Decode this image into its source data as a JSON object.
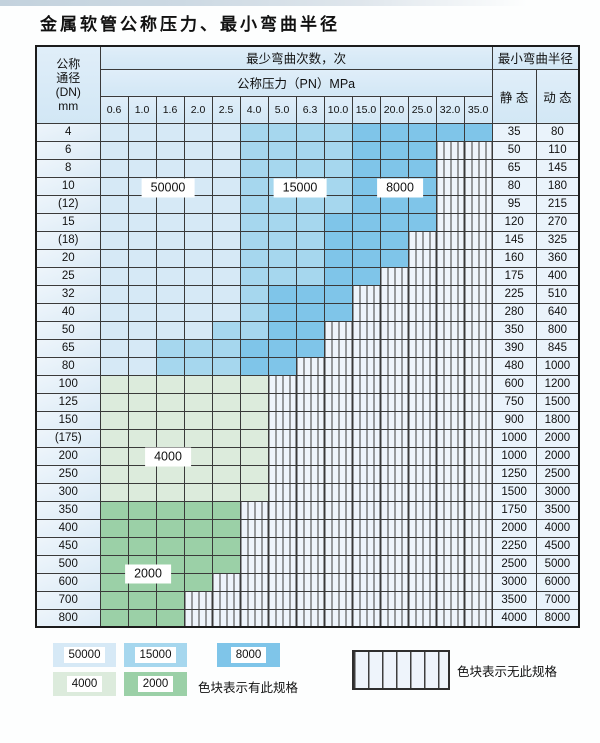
{
  "title": "金属软管公称压力、最小弯曲半径",
  "table": {
    "header": {
      "dn_label_lines": [
        "公称",
        "通径",
        "(DN)",
        "mm"
      ],
      "bend_cycles_label": "最少弯曲次数，次",
      "pressure_label": "公称压力（PN）MPa",
      "radius_label": "最小弯曲半径",
      "static_label": "静 态",
      "dynamic_label": "动 态",
      "pressures": [
        "0.6",
        "1.0",
        "1.6",
        "2.0",
        "2.5",
        "4.0",
        "5.0",
        "6.3",
        "10.0",
        "15.0",
        "20.0",
        "25.0",
        "32.0",
        "35.0"
      ]
    },
    "rows": [
      {
        "dn": "4",
        "static": "35",
        "dynamic": "80",
        "cells": [
          "b1",
          "b1",
          "b1",
          "b1",
          "b1",
          "b2",
          "b2",
          "b2",
          "b2",
          "b3",
          "b3",
          "b3",
          "b3",
          "b3"
        ]
      },
      {
        "dn": "6",
        "static": "50",
        "dynamic": "110",
        "cells": [
          "b1",
          "b1",
          "b1",
          "b1",
          "b1",
          "b2",
          "b2",
          "b2",
          "b2",
          "b3",
          "b3",
          "b3",
          "x",
          "x"
        ]
      },
      {
        "dn": "8",
        "static": "65",
        "dynamic": "145",
        "cells": [
          "b1",
          "b1",
          "b1",
          "b1",
          "b1",
          "b2",
          "b2",
          "b2",
          "b2",
          "b3",
          "b3",
          "b3",
          "x",
          "x"
        ]
      },
      {
        "dn": "10",
        "static": "80",
        "dynamic": "180",
        "cells": [
          "b1",
          "b1",
          "b1",
          "b1",
          "b1",
          "b2",
          "b2",
          "b2",
          "b2",
          "b3",
          "b3",
          "b3",
          "x",
          "x"
        ]
      },
      {
        "dn": "(12)",
        "static": "95",
        "dynamic": "215",
        "cells": [
          "b1",
          "b1",
          "b1",
          "b1",
          "b1",
          "b2",
          "b2",
          "b2",
          "b2",
          "b3",
          "b3",
          "b3",
          "x",
          "x"
        ]
      },
      {
        "dn": "15",
        "static": "120",
        "dynamic": "270",
        "cells": [
          "b1",
          "b1",
          "b1",
          "b1",
          "b1",
          "b2",
          "b2",
          "b2",
          "b3",
          "b3",
          "b3",
          "b3",
          "x",
          "x"
        ]
      },
      {
        "dn": "(18)",
        "static": "145",
        "dynamic": "325",
        "cells": [
          "b1",
          "b1",
          "b1",
          "b1",
          "b1",
          "b2",
          "b2",
          "b2",
          "b3",
          "b3",
          "b3",
          "x",
          "x",
          "x"
        ]
      },
      {
        "dn": "20",
        "static": "160",
        "dynamic": "360",
        "cells": [
          "b1",
          "b1",
          "b1",
          "b1",
          "b1",
          "b2",
          "b2",
          "b2",
          "b3",
          "b3",
          "b3",
          "x",
          "x",
          "x"
        ]
      },
      {
        "dn": "25",
        "static": "175",
        "dynamic": "400",
        "cells": [
          "b1",
          "b1",
          "b1",
          "b1",
          "b1",
          "b2",
          "b2",
          "b2",
          "b3",
          "b3",
          "x",
          "x",
          "x",
          "x"
        ]
      },
      {
        "dn": "32",
        "static": "225",
        "dynamic": "510",
        "cells": [
          "b1",
          "b1",
          "b1",
          "b1",
          "b1",
          "b2",
          "b3",
          "b3",
          "b3",
          "x",
          "x",
          "x",
          "x",
          "x"
        ]
      },
      {
        "dn": "40",
        "static": "280",
        "dynamic": "640",
        "cells": [
          "b1",
          "b1",
          "b1",
          "b1",
          "b1",
          "b2",
          "b3",
          "b3",
          "b3",
          "x",
          "x",
          "x",
          "x",
          "x"
        ]
      },
      {
        "dn": "50",
        "static": "350",
        "dynamic": "800",
        "cells": [
          "b1",
          "b1",
          "b1",
          "b1",
          "b2",
          "b2",
          "b3",
          "b3",
          "x",
          "x",
          "x",
          "x",
          "x",
          "x"
        ]
      },
      {
        "dn": "65",
        "static": "390",
        "dynamic": "845",
        "cells": [
          "b1",
          "b1",
          "b2",
          "b2",
          "b2",
          "b3",
          "b3",
          "b3",
          "x",
          "x",
          "x",
          "x",
          "x",
          "x"
        ]
      },
      {
        "dn": "80",
        "static": "480",
        "dynamic": "1000",
        "cells": [
          "b1",
          "b1",
          "b2",
          "b2",
          "b2",
          "b3",
          "b3",
          "x",
          "x",
          "x",
          "x",
          "x",
          "x",
          "x"
        ]
      },
      {
        "dn": "100",
        "static": "600",
        "dynamic": "1200",
        "cells": [
          "g1",
          "g1",
          "g1",
          "g1",
          "g1",
          "g1",
          "x",
          "x",
          "x",
          "x",
          "x",
          "x",
          "x",
          "x"
        ]
      },
      {
        "dn": "125",
        "static": "750",
        "dynamic": "1500",
        "cells": [
          "g1",
          "g1",
          "g1",
          "g1",
          "g1",
          "g1",
          "x",
          "x",
          "x",
          "x",
          "x",
          "x",
          "x",
          "x"
        ]
      },
      {
        "dn": "150",
        "static": "900",
        "dynamic": "1800",
        "cells": [
          "g1",
          "g1",
          "g1",
          "g1",
          "g1",
          "g1",
          "x",
          "x",
          "x",
          "x",
          "x",
          "x",
          "x",
          "x"
        ]
      },
      {
        "dn": "(175)",
        "static": "1000",
        "dynamic": "2000",
        "cells": [
          "g1",
          "g1",
          "g1",
          "g1",
          "g1",
          "g1",
          "x",
          "x",
          "x",
          "x",
          "x",
          "x",
          "x",
          "x"
        ]
      },
      {
        "dn": "200",
        "static": "1000",
        "dynamic": "2000",
        "cells": [
          "g1",
          "g1",
          "g1",
          "g1",
          "g1",
          "g1",
          "x",
          "x",
          "x",
          "x",
          "x",
          "x",
          "x",
          "x"
        ]
      },
      {
        "dn": "250",
        "static": "1250",
        "dynamic": "2500",
        "cells": [
          "g1",
          "g1",
          "g1",
          "g1",
          "g1",
          "g1",
          "x",
          "x",
          "x",
          "x",
          "x",
          "x",
          "x",
          "x"
        ]
      },
      {
        "dn": "300",
        "static": "1500",
        "dynamic": "3000",
        "cells": [
          "g1",
          "g1",
          "g1",
          "g1",
          "g1",
          "g1",
          "x",
          "x",
          "x",
          "x",
          "x",
          "x",
          "x",
          "x"
        ]
      },
      {
        "dn": "350",
        "static": "1750",
        "dynamic": "3500",
        "cells": [
          "g2",
          "g2",
          "g2",
          "g2",
          "g2",
          "x",
          "x",
          "x",
          "x",
          "x",
          "x",
          "x",
          "x",
          "x"
        ]
      },
      {
        "dn": "400",
        "static": "2000",
        "dynamic": "4000",
        "cells": [
          "g2",
          "g2",
          "g2",
          "g2",
          "g2",
          "x",
          "x",
          "x",
          "x",
          "x",
          "x",
          "x",
          "x",
          "x"
        ]
      },
      {
        "dn": "450",
        "static": "2250",
        "dynamic": "4500",
        "cells": [
          "g2",
          "g2",
          "g2",
          "g2",
          "g2",
          "x",
          "x",
          "x",
          "x",
          "x",
          "x",
          "x",
          "x",
          "x"
        ]
      },
      {
        "dn": "500",
        "static": "2500",
        "dynamic": "5000",
        "cells": [
          "g2",
          "g2",
          "g2",
          "g2",
          "g2",
          "x",
          "x",
          "x",
          "x",
          "x",
          "x",
          "x",
          "x",
          "x"
        ]
      },
      {
        "dn": "600",
        "static": "3000",
        "dynamic": "6000",
        "cells": [
          "g2",
          "g2",
          "g2",
          "g2",
          "x",
          "x",
          "x",
          "x",
          "x",
          "x",
          "x",
          "x",
          "x",
          "x"
        ]
      },
      {
        "dn": "700",
        "static": "3500",
        "dynamic": "7000",
        "cells": [
          "g2",
          "g2",
          "g2",
          "x",
          "x",
          "x",
          "x",
          "x",
          "x",
          "x",
          "x",
          "x",
          "x",
          "x"
        ]
      },
      {
        "dn": "800",
        "static": "4000",
        "dynamic": "8000",
        "cells": [
          "g2",
          "g2",
          "g2",
          "x",
          "x",
          "x",
          "x",
          "x",
          "x",
          "x",
          "x",
          "x",
          "x",
          "x"
        ]
      }
    ]
  },
  "region_labels": [
    {
      "text": "50000"
    },
    {
      "text": "15000"
    },
    {
      "text": "8000"
    },
    {
      "text": "4000"
    },
    {
      "text": "2000"
    }
  ],
  "legend": {
    "items": [
      {
        "text": "50000",
        "color_key": "b1"
      },
      {
        "text": "15000",
        "color_key": "b2"
      },
      {
        "text": "8000",
        "color_key": "b3"
      },
      {
        "text": "4000",
        "color_key": "g1"
      },
      {
        "text": "2000",
        "color_key": "g2"
      }
    ],
    "has_spec_label": "色块表示有此规格",
    "no_spec_label": "色块表示无此规格"
  },
  "colors": {
    "b1": "#d6e9f6",
    "b2": "#a6d7ee",
    "b3": "#7fc5e9",
    "g1": "#dcebdc",
    "g2": "#9bd0a7",
    "hatch_bg": "#eef4fb",
    "hatch_line": "#3e3e3e"
  }
}
